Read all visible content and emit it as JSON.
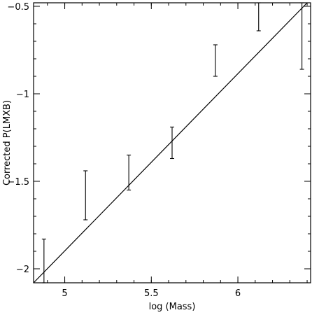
{
  "chart_data": {
    "type": "scatter",
    "xlabel": "log (Mass)",
    "ylabel": "Corrected P(LMXB)",
    "xlim": [
      4.82,
      6.42
    ],
    "ylim": [
      -2.08,
      -0.48
    ],
    "x_ticks": [
      {
        "value": 5,
        "label": "5"
      },
      {
        "value": 5.5,
        "label": "5.5"
      },
      {
        "value": 6,
        "label": "6"
      }
    ],
    "y_ticks": [
      {
        "value": -2,
        "label": "−2"
      },
      {
        "value": -1.5,
        "label": "−1.5"
      },
      {
        "value": -1,
        "label": "−1"
      },
      {
        "value": -0.5,
        "label": "−0.5"
      }
    ],
    "x_minor_step": 0.1,
    "y_minor_step": 0.1,
    "error_bars": [
      {
        "x": 4.88,
        "low": -2.08,
        "high": -1.83
      },
      {
        "x": 5.12,
        "low": -1.72,
        "high": -1.44
      },
      {
        "x": 5.37,
        "low": -1.55,
        "high": -1.35
      },
      {
        "x": 5.62,
        "low": -1.37,
        "high": -1.19
      },
      {
        "x": 5.87,
        "low": -0.9,
        "high": -0.72
      },
      {
        "x": 6.12,
        "low": -0.64,
        "high": -0.48
      },
      {
        "x": 6.37,
        "low": -0.86,
        "high": -0.48
      }
    ],
    "fit_line": [
      {
        "x": 4.82,
        "y": -2.08
      },
      {
        "x": 6.4,
        "y": -0.48
      }
    ]
  }
}
